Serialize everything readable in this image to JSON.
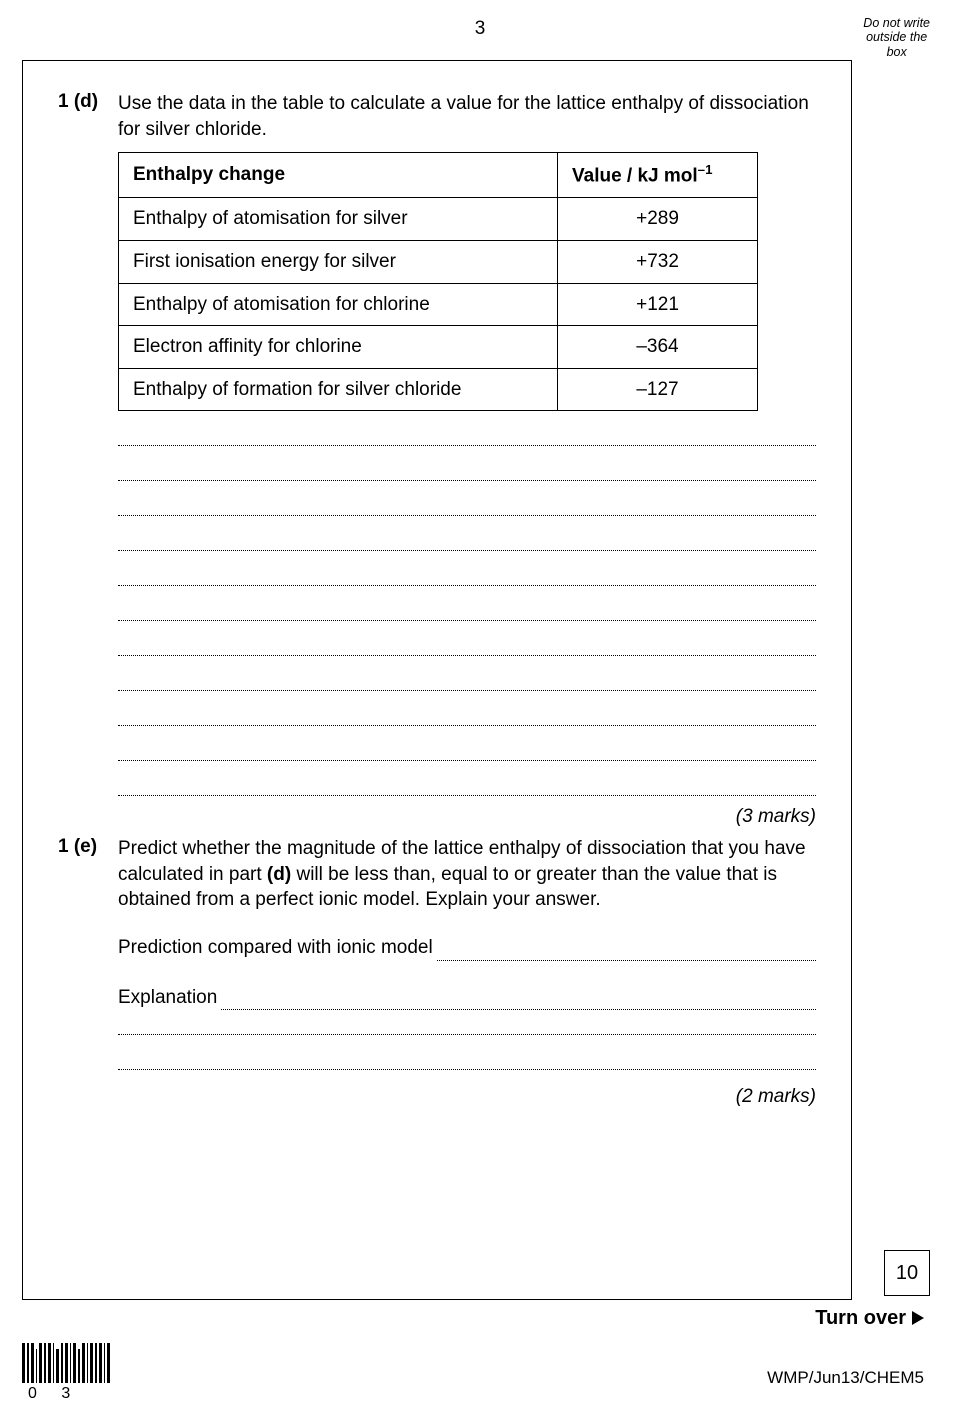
{
  "page_number": "3",
  "outside_box": {
    "l1": "Do not write",
    "l2": "outside the",
    "l3": "box"
  },
  "q_d": {
    "number": "1 (d)",
    "text": "Use the data in the table to calculate a value for the lattice enthalpy of dissociation for silver chloride.",
    "table": {
      "header_left": "Enthalpy change",
      "header_right_pre": "Value / kJ mol",
      "header_right_sup": "–1",
      "rows": [
        {
          "label": "Enthalpy of atomisation for silver",
          "value": "+289"
        },
        {
          "label": "First ionisation energy for silver",
          "value": "+732"
        },
        {
          "label": "Enthalpy of atomisation for chlorine",
          "value": "+121"
        },
        {
          "label": "Electron affinity for chlorine",
          "value": "–364"
        },
        {
          "label": "Enthalpy of formation for silver chloride",
          "value": "–127"
        }
      ]
    },
    "answer_lines": 11,
    "marks": "(3 marks)"
  },
  "q_e": {
    "number": "1 (e)",
    "text_1": "Predict whether the magnitude of the lattice enthalpy of dissociation that you have calculated in part ",
    "text_bold": "(d)",
    "text_2": " will be less than, equal to or greater than the value that is obtained from a perfect ionic model.  Explain your answer.",
    "prediction_label": "Prediction compared with ionic model",
    "explanation_label": "Explanation",
    "extra_lines": 2,
    "marks": "(2 marks)"
  },
  "margin_total": "10",
  "turn_over": "Turn over",
  "footer_code": "WMP/Jun13/CHEM5",
  "barcode_label": "0 3"
}
